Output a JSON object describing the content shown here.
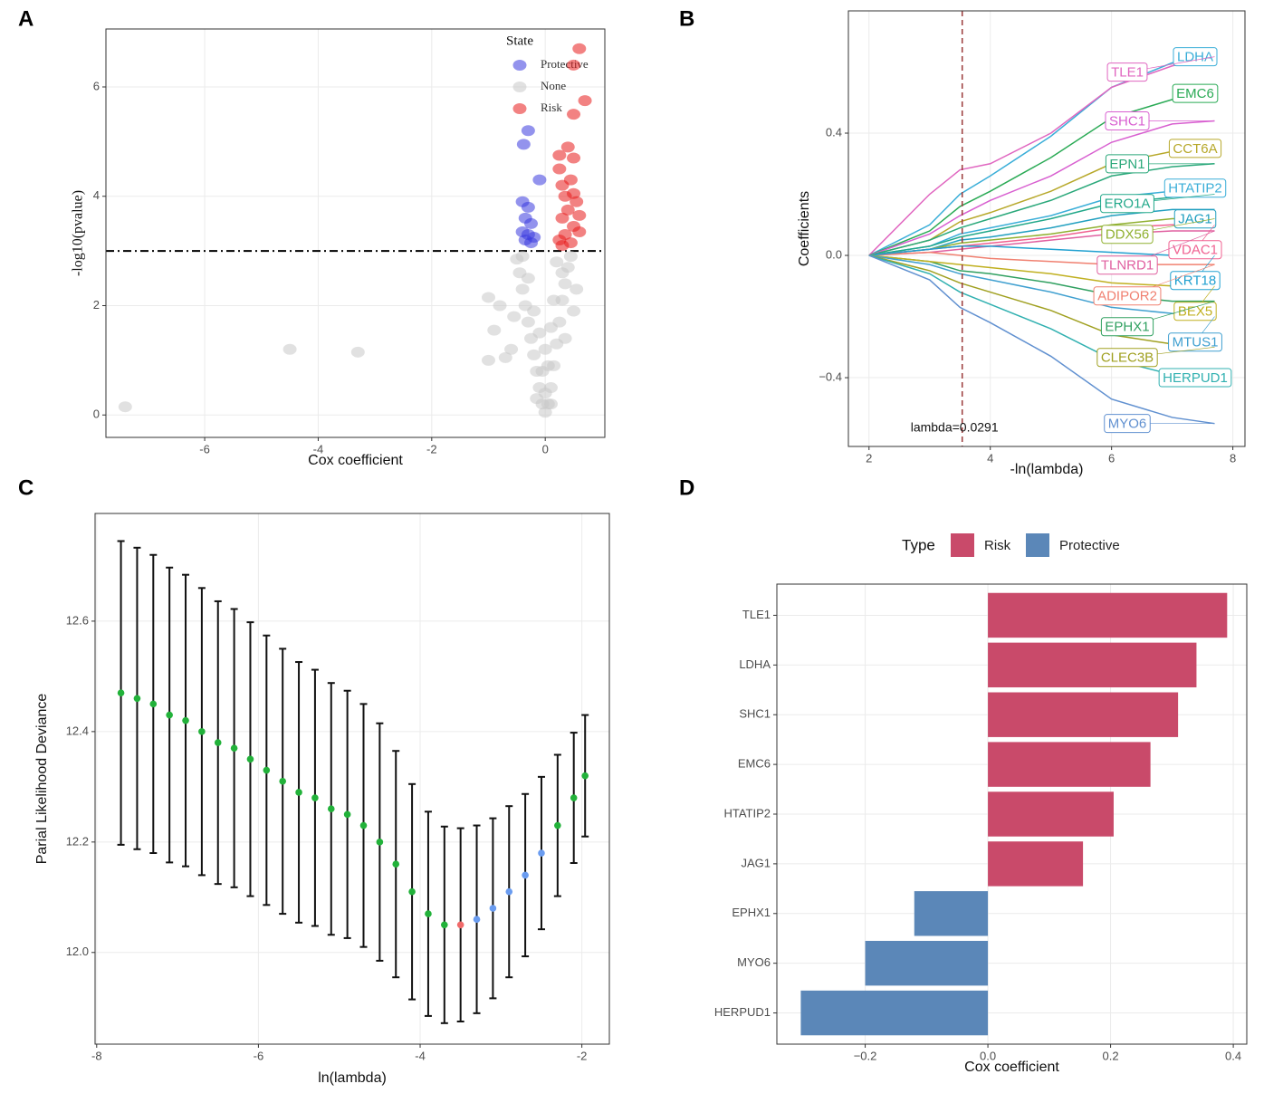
{
  "chart_data": [
    {
      "type": "scatter",
      "panel": "A",
      "x_label": "Cox coefficient",
      "y_label": "-log10(pvalue)",
      "legend_title": "State",
      "xlim": [
        -7.74,
        1.05
      ],
      "ylim": [
        -0.41,
        7.06
      ],
      "xticks": [
        -6,
        -4,
        -2,
        0
      ],
      "yticks": [
        0,
        2,
        4,
        6
      ],
      "grid": true,
      "hline": 3,
      "series": [
        {
          "name": "Protective",
          "color": "#3b3bdf",
          "x": [
            -0.3,
            -0.38,
            -0.1,
            -0.4,
            -0.3,
            -0.35,
            -0.25,
            -0.4,
            -0.3,
            -0.2,
            -0.35,
            -0.25
          ],
          "values": [
            5.2,
            4.95,
            4.3,
            3.9,
            3.8,
            3.6,
            3.5,
            3.35,
            3.3,
            3.25,
            3.2,
            3.15
          ]
        },
        {
          "name": "None",
          "color": "#c8c8c8",
          "x": [
            -7.4,
            -4.5,
            -3.3,
            -1.0,
            -0.9,
            -1.0,
            -0.8,
            -0.05,
            -0.1,
            -0.15,
            -0.2,
            -0.25,
            -0.3,
            -0.35,
            -0.4,
            -0.45,
            -0.5,
            0.05,
            0.1,
            0.15,
            0.2,
            0.25,
            0.3,
            0.35,
            0.4,
            0.45,
            0,
            0,
            -0.05,
            0.05,
            0,
            -0.1,
            0.1,
            -0.2,
            0.15,
            -0.3,
            0.3,
            -0.55,
            -0.6,
            0.55,
            0.2,
            -0.4,
            0.35,
            -0.15,
            0.1,
            -0.7,
            0.5
          ],
          "values": [
            0.15,
            1.2,
            1.15,
            1.0,
            1.55,
            2.15,
            2.0,
            0.2,
            0.5,
            0.8,
            1.1,
            1.4,
            1.7,
            2.0,
            2.3,
            2.6,
            2.85,
            0.2,
            0.5,
            0.9,
            1.3,
            1.7,
            2.1,
            2.4,
            2.7,
            2.9,
            0.05,
            0.4,
            0.8,
            0.9,
            1.2,
            1.5,
            1.6,
            1.9,
            2.1,
            2.5,
            2.6,
            1.8,
            1.2,
            2.3,
            2.8,
            2.9,
            1.4,
            0.3,
            0.2,
            1.05,
            1.9
          ]
        },
        {
          "name": "Risk",
          "color": "#e81c1c",
          "x": [
            0.6,
            0.5,
            0.7,
            0.5,
            0.4,
            0.25,
            0.5,
            0.25,
            0.45,
            0.3,
            0.5,
            0.35,
            0.55,
            0.4,
            0.6,
            0.3,
            0.5,
            0.6,
            0.35,
            0.25,
            0.45,
            0.3
          ],
          "values": [
            6.7,
            6.4,
            5.75,
            5.5,
            4.9,
            4.75,
            4.7,
            4.5,
            4.3,
            4.2,
            4.05,
            4.0,
            3.9,
            3.75,
            3.65,
            3.6,
            3.45,
            3.35,
            3.3,
            3.2,
            3.15,
            3.1
          ]
        }
      ]
    },
    {
      "type": "line",
      "panel": "B",
      "x_label": "-ln(lambda)",
      "y_label": "Coefficients",
      "annotation": "lambda=0.0291",
      "vline": 3.537,
      "xlim": [
        1.66,
        8.2
      ],
      "ylim": [
        -0.625,
        0.8
      ],
      "xticks": [
        2,
        4,
        6,
        8
      ],
      "yticks": [
        {
          "value": -0.4,
          "label": "−0.4"
        },
        {
          "value": 0,
          "label": "0.0"
        },
        0.4
      ],
      "grid": true,
      "x": [
        2,
        3,
        3.5,
        4,
        5,
        6,
        7,
        7.7
      ],
      "series": [
        {
          "name": "LDHA",
          "color": "#3aaed8",
          "values": [
            0,
            0.1,
            0.2,
            0.26,
            0.39,
            0.55,
            0.63,
            0.65
          ]
        },
        {
          "name": "TLE1",
          "color": "#e066c0",
          "values": [
            0,
            0.2,
            0.28,
            0.3,
            0.4,
            0.55,
            0.62,
            0.65
          ]
        },
        {
          "name": "EMC6",
          "color": "#2aaa55",
          "values": [
            0,
            0.08,
            0.16,
            0.21,
            0.32,
            0.45,
            0.51,
            0.53
          ]
        },
        {
          "name": "SHC1",
          "color": "#d85fd0",
          "values": [
            0,
            0.07,
            0.13,
            0.18,
            0.26,
            0.37,
            0.43,
            0.44
          ]
        },
        {
          "name": "CCT6A",
          "color": "#b7a82a",
          "values": [
            0,
            0.05,
            0.11,
            0.14,
            0.21,
            0.3,
            0.34,
            0.35
          ]
        },
        {
          "name": "EPN1",
          "color": "#2aa87a",
          "values": [
            0,
            0.05,
            0.09,
            0.12,
            0.18,
            0.26,
            0.29,
            0.3
          ]
        },
        {
          "name": "HTATIP2",
          "color": "#3aaed8",
          "values": [
            0,
            0.03,
            0.07,
            0.09,
            0.13,
            0.19,
            0.21,
            0.22
          ]
        },
        {
          "name": "ERO1A",
          "color": "#22a88a",
          "values": [
            0,
            0.03,
            0.06,
            0.08,
            0.12,
            0.17,
            0.19,
            0.2
          ]
        },
        {
          "name": "JAG1",
          "color": "#22a0c0",
          "values": [
            0,
            0.02,
            0.05,
            0.06,
            0.09,
            0.13,
            0.15,
            0.15
          ]
        },
        {
          "name": "DDX56",
          "color": "#90b030",
          "values": [
            0,
            0.02,
            0.04,
            0.05,
            0.07,
            0.1,
            0.12,
            0.12
          ]
        },
        {
          "name": "TLNRD1",
          "color": "#e060a0",
          "values": [
            0,
            0.01,
            0.02,
            0.03,
            0.05,
            0.07,
            0.08,
            0.08
          ]
        },
        {
          "name": "VDAC1",
          "color": "#f06090",
          "values": [
            0,
            0.02,
            0.03,
            0.04,
            0.06,
            0.09,
            0.1,
            0.1
          ]
        },
        {
          "name": "ADIPOR2",
          "color": "#f08070",
          "values": [
            0,
            0.01,
            0,
            -0.01,
            -0.02,
            -0.03,
            -0.03,
            -0.03
          ]
        },
        {
          "name": "KRT18",
          "color": "#20a0d0",
          "values": [
            0,
            0.02,
            0.03,
            0.03,
            0.02,
            0.01,
            0,
            0
          ]
        },
        {
          "name": "EPHX1",
          "color": "#30a060",
          "values": [
            0,
            -0.02,
            -0.05,
            -0.06,
            -0.09,
            -0.13,
            -0.15,
            -0.15
          ]
        },
        {
          "name": "BEX5",
          "color": "#c0b020",
          "values": [
            0,
            -0.02,
            -0.03,
            -0.04,
            -0.06,
            -0.09,
            -0.1,
            -0.1
          ]
        },
        {
          "name": "MTUS1",
          "color": "#40a0d0",
          "values": [
            0,
            -0.03,
            -0.06,
            -0.08,
            -0.12,
            -0.17,
            -0.19,
            -0.2
          ]
        },
        {
          "name": "CLEC3B",
          "color": "#a0a020",
          "values": [
            0,
            -0.05,
            -0.09,
            -0.12,
            -0.18,
            -0.26,
            -0.29,
            -0.3
          ]
        },
        {
          "name": "HERPUD1",
          "color": "#30b0b0",
          "values": [
            0,
            -0.06,
            -0.12,
            -0.16,
            -0.24,
            -0.34,
            -0.39,
            -0.4
          ]
        },
        {
          "name": "MYO6",
          "color": "#6090d0",
          "values": [
            0,
            -0.08,
            -0.17,
            -0.22,
            -0.33,
            -0.47,
            -0.53,
            -0.55
          ]
        }
      ]
    },
    {
      "type": "errorbar",
      "panel": "C",
      "x_label": "ln(lambda)",
      "y_label": "Parial Likelihood Deviance",
      "xlim": [
        -8.02,
        -1.66
      ],
      "ylim": [
        11.834,
        12.795
      ],
      "xticks": [
        -8,
        -6,
        -4,
        -2
      ],
      "yticks": [
        {
          "value": 12,
          "label": "12.0"
        },
        12.2,
        12.4,
        12.6
      ],
      "grid": true,
      "x": [
        -7.7,
        -7.5,
        -7.3,
        -7.1,
        -6.9,
        -6.7,
        -6.5,
        -6.3,
        -6.1,
        -5.9,
        -5.7,
        -5.5,
        -5.3,
        -5.1,
        -4.9,
        -4.7,
        -4.5,
        -4.3,
        -4.1,
        -3.9,
        -3.7,
        -3.5,
        -3.3,
        -3.1,
        -2.9,
        -2.7,
        -2.5,
        -2.3,
        -2.1,
        -1.96
      ],
      "values": [
        12.47,
        12.46,
        12.45,
        12.43,
        12.42,
        12.4,
        12.38,
        12.37,
        12.35,
        12.33,
        12.31,
        12.29,
        12.28,
        12.26,
        12.25,
        12.23,
        12.2,
        12.16,
        12.11,
        12.07,
        12.05,
        12.05,
        12.06,
        12.08,
        12.11,
        12.14,
        12.18,
        12.23,
        12.28,
        12.32
      ],
      "errors": [
        0.275,
        0.273,
        0.27,
        0.267,
        0.264,
        0.26,
        0.256,
        0.252,
        0.248,
        0.244,
        0.24,
        0.236,
        0.232,
        0.228,
        0.224,
        0.22,
        0.215,
        0.205,
        0.195,
        0.185,
        0.178,
        0.175,
        0.17,
        0.163,
        0.155,
        0.147,
        0.138,
        0.128,
        0.118,
        0.11
      ],
      "colors": [
        "#22b23a",
        "#22b23a",
        "#22b23a",
        "#22b23a",
        "#22b23a",
        "#22b23a",
        "#22b23a",
        "#22b23a",
        "#22b23a",
        "#22b23a",
        "#22b23a",
        "#22b23a",
        "#22b23a",
        "#22b23a",
        "#22b23a",
        "#22b23a",
        "#22b23a",
        "#22b23a",
        "#22b23a",
        "#22b23a",
        "#22b23a",
        "#f06a6a",
        "#6a9cf0",
        "#6a9cf0",
        "#6a9cf0",
        "#6a9cf0",
        "#6a9cf0",
        "#22b23a",
        "#22b23a",
        "#22b23a"
      ]
    },
    {
      "type": "bar",
      "panel": "D",
      "orientation": "horizontal",
      "x_label": "Cox coefficient",
      "legend_title": "Type",
      "xlim": [
        -0.344,
        0.422
      ],
      "xticks": [
        {
          "value": -0.2,
          "label": "−0.2"
        },
        {
          "value": 0,
          "label": "0.0"
        },
        0.2,
        0.4
      ],
      "grid": true,
      "categories": [
        "TLE1",
        "LDHA",
        "SHC1",
        "EMC6",
        "HTATIP2",
        "JAG1",
        "EPHX1",
        "MYO6",
        "HERPUD1"
      ],
      "series": [
        {
          "name": "Risk",
          "color": "#c94a6a",
          "values": [
            0.39,
            0.34,
            0.31,
            0.265,
            0.205,
            0.155,
            null,
            null,
            null
          ]
        },
        {
          "name": "Protective",
          "color": "#5b87b8",
          "values": [
            null,
            null,
            null,
            null,
            null,
            null,
            -0.12,
            -0.2,
            -0.305
          ]
        }
      ]
    }
  ]
}
